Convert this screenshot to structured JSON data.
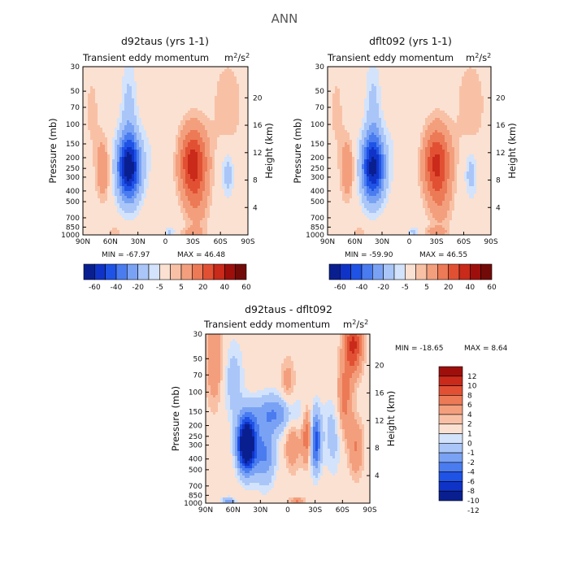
{
  "figure_title": "ANN",
  "colorscale_full": [
    "#0a1f8f",
    "#1033c7",
    "#1f53e6",
    "#4a7cf0",
    "#7aa2f4",
    "#aac6f8",
    "#d3e3fb",
    "#fbe1d2",
    "#f8c1a6",
    "#f39f7d",
    "#ec7a56",
    "#e25033",
    "#c92a1a",
    "#9e0f0c",
    "#720b08"
  ],
  "colorscale_diff": [
    "#0a1f8f",
    "#1033c7",
    "#1f53e6",
    "#4a7cf0",
    "#7aa2f4",
    "#aac6f8",
    "#d3e3fb",
    "#fbe1d2",
    "#f8c1a6",
    "#f39f7d",
    "#ec7a56",
    "#e25033",
    "#c92a1a",
    "#9e0f0c"
  ],
  "chart_data": [
    {
      "type": "heatmap",
      "title": "d92taus (yrs 1-1)",
      "subtitle": "Transient eddy momentum",
      "units": "m²/s²",
      "xlabel": "",
      "ylabel": "Pressure (mb)",
      "y2label": "Height (km)",
      "x_ticks": [
        "90N",
        "60N",
        "30N",
        "0",
        "30S",
        "60S",
        "90S"
      ],
      "y_ticks": [
        "30",
        "50",
        "70",
        "100",
        "150",
        "200",
        "250",
        "300",
        "400",
        "500",
        "700",
        "850",
        "1000"
      ],
      "y2_ticks": [
        "4",
        "8",
        "12",
        "16",
        "20"
      ],
      "min_label": "MIN = -67.97",
      "max_label": "MAX = 46.48",
      "cbar_labels": [
        "-60",
        "-40",
        "-20",
        "-5",
        "5",
        "20",
        "40",
        "60"
      ],
      "features": [
        {
          "lat": -30,
          "pressure": 220,
          "value": 46
        },
        {
          "lat": 40,
          "pressure": 260,
          "value": -68
        },
        {
          "lat": 68,
          "pressure": 280,
          "value": 20
        },
        {
          "lat": -68,
          "pressure": 300,
          "value": -15
        }
      ]
    },
    {
      "type": "heatmap",
      "title": "dflt092 (yrs 1-1)",
      "subtitle": "Transient eddy momentum",
      "units": "m²/s²",
      "xlabel": "",
      "ylabel": "Pressure (mb)",
      "y2label": "Height (km)",
      "x_ticks": [
        "90N",
        "60N",
        "30N",
        "0",
        "30S",
        "60S",
        "90S"
      ],
      "y_ticks": [
        "30",
        "50",
        "70",
        "100",
        "150",
        "200",
        "250",
        "300",
        "400",
        "500",
        "700",
        "850",
        "1000"
      ],
      "y2_ticks": [
        "4",
        "8",
        "12",
        "16",
        "20"
      ],
      "min_label": "MIN = -59.90",
      "max_label": "MAX = 46.55",
      "cbar_labels": [
        "-60",
        "-40",
        "-20",
        "-5",
        "5",
        "20",
        "40",
        "60"
      ],
      "features": [
        {
          "lat": -30,
          "pressure": 220,
          "value": 46
        },
        {
          "lat": 38,
          "pressure": 260,
          "value": -60
        },
        {
          "lat": 68,
          "pressure": 280,
          "value": 20
        },
        {
          "lat": -68,
          "pressure": 300,
          "value": -15
        }
      ]
    },
    {
      "type": "heatmap",
      "title": "d92taus - dflt092",
      "subtitle": "Transient eddy momentum",
      "units": "m²/s²",
      "xlabel": "",
      "ylabel": "Pressure (mb)",
      "y2label": "Height (km)",
      "x_ticks": [
        "90N",
        "60N",
        "30N",
        "0",
        "30S",
        "60S",
        "90S"
      ],
      "y_ticks": [
        "30",
        "50",
        "70",
        "100",
        "150",
        "200",
        "250",
        "300",
        "400",
        "500",
        "700",
        "850",
        "1000"
      ],
      "y2_ticks": [
        "4",
        "8",
        "12",
        "16",
        "20"
      ],
      "min_label": "MIN = -18.65",
      "max_label": "MAX =   8.64",
      "cbar_labels": [
        "12",
        "10",
        "8",
        "6",
        "4",
        "2",
        "1",
        "0",
        "-1",
        "-2",
        "-4",
        "-6",
        "-8",
        "-10",
        "-12"
      ],
      "features": [
        {
          "lat": 45,
          "pressure": 320,
          "value": -18.65
        },
        {
          "lat": -72,
          "pressure": 35,
          "value": 8.64
        },
        {
          "lat": -22,
          "pressure": 230,
          "value": 7
        },
        {
          "lat": -30,
          "pressure": 150,
          "value": -10
        }
      ]
    }
  ]
}
